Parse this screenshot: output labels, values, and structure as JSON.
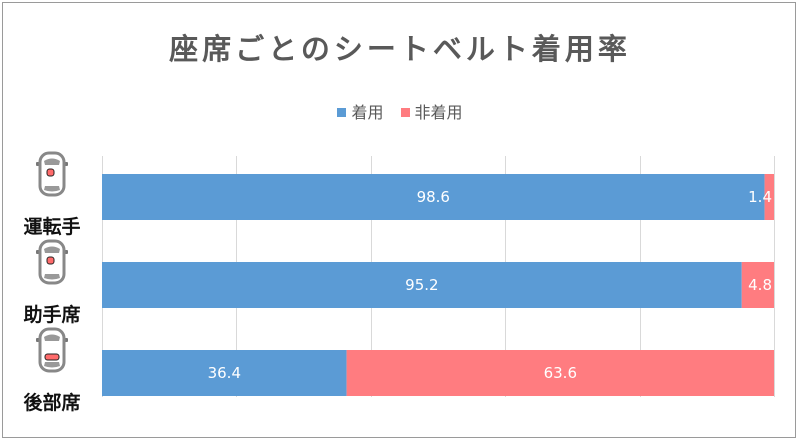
{
  "chart_data": {
    "type": "bar",
    "orientation": "horizontal",
    "stacked": true,
    "title": "座席ごとのシートベルト着用率",
    "categories": [
      "運転手",
      "助手席",
      "後部席"
    ],
    "series": [
      {
        "name": "着用",
        "color": "#5b9bd5",
        "values": [
          98.6,
          95.2,
          36.4
        ]
      },
      {
        "name": "非着用",
        "color": "#ff7c80",
        "values": [
          1.4,
          4.8,
          63.6
        ]
      }
    ],
    "xlim": [
      0,
      100
    ],
    "grid": true,
    "legend": "top",
    "category_icons": [
      "car-driver-seat-icon",
      "car-passenger-seat-icon",
      "car-rear-seat-icon"
    ]
  }
}
